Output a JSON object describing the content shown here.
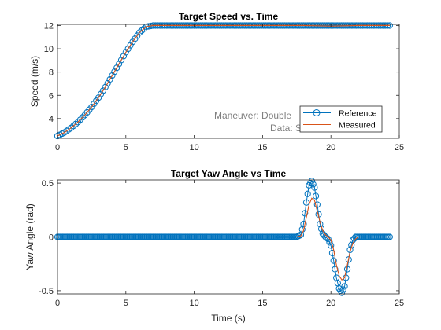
{
  "colors": {
    "reference": "#0072BD",
    "measured": "#D95319",
    "axis": "#262626",
    "annotation": "#7f7f7f"
  },
  "chart_data": [
    {
      "type": "line",
      "title": "Target Speed vs. Time",
      "xlabel": "",
      "ylabel": "Speed (m/s)",
      "xlim": [
        0,
        25
      ],
      "ylim": [
        2.3,
        12.1
      ],
      "xticks": [
        "0",
        "5",
        "10",
        "15",
        "20",
        "25"
      ],
      "yticks": [
        "4",
        "6",
        "8",
        "10",
        "12"
      ],
      "grid": false,
      "legend_location": "bottom-right",
      "annotations": [
        "Maneuver: Double",
        "Data: S"
      ],
      "series": [
        {
          "name": "Reference",
          "style": "circle-markers-line",
          "x": [
            0,
            0.5,
            1,
            1.5,
            2,
            2.5,
            3,
            3.5,
            4,
            4.5,
            5,
            5.5,
            6,
            6.5,
            7,
            7.5,
            8,
            10,
            12,
            14,
            16,
            18,
            20,
            22,
            24.3
          ],
          "y": [
            2.5,
            2.8,
            3.2,
            3.7,
            4.3,
            5.0,
            5.8,
            6.7,
            7.7,
            8.7,
            9.7,
            10.6,
            11.4,
            11.9,
            12.0,
            12.0,
            12.0,
            12.0,
            12.0,
            12.0,
            12.0,
            12.0,
            12.0,
            12.0,
            12.0
          ]
        },
        {
          "name": "Measured",
          "style": "line",
          "x": [
            0,
            0.5,
            1,
            1.5,
            2,
            2.5,
            3,
            3.5,
            4,
            4.5,
            5,
            5.5,
            6,
            6.5,
            7,
            7.5,
            8,
            10,
            12,
            14,
            16,
            18,
            20,
            22,
            24.3
          ],
          "y": [
            2.5,
            2.8,
            3.2,
            3.7,
            4.3,
            5.0,
            5.8,
            6.7,
            7.7,
            8.7,
            9.7,
            10.6,
            11.4,
            11.9,
            12.0,
            12.0,
            12.0,
            12.0,
            12.0,
            12.0,
            12.0,
            12.0,
            11.95,
            12.0,
            12.0
          ]
        }
      ]
    },
    {
      "type": "line",
      "title": "Target Yaw Angle vs Time",
      "xlabel": "Time (s)",
      "ylabel": "Yaw Angle (rad)",
      "xlim": [
        0,
        25
      ],
      "ylim": [
        -0.53,
        0.53
      ],
      "xticks": [
        "0",
        "5",
        "10",
        "15",
        "20",
        "25"
      ],
      "yticks": [
        "-0.5",
        "0",
        "0.5"
      ],
      "grid": false,
      "series": [
        {
          "name": "Reference",
          "style": "circle-markers-line",
          "x": [
            0,
            2,
            4,
            6,
            8,
            10,
            12,
            14,
            16,
            17.5,
            17.8,
            18.0,
            18.2,
            18.4,
            18.6,
            18.8,
            19.0,
            19.2,
            19.4,
            19.6,
            19.8,
            20.0,
            20.2,
            20.4,
            20.6,
            20.8,
            21.0,
            21.2,
            21.4,
            21.6,
            21.8,
            22.0,
            23,
            24.3
          ],
          "y": [
            0,
            0,
            0,
            0,
            0,
            0,
            0,
            0,
            0,
            0,
            0.02,
            0.12,
            0.32,
            0.48,
            0.52,
            0.46,
            0.3,
            0.12,
            0.03,
            0,
            -0.02,
            -0.08,
            -0.22,
            -0.38,
            -0.48,
            -0.52,
            -0.46,
            -0.3,
            -0.12,
            -0.03,
            0,
            0,
            0,
            0
          ]
        },
        {
          "name": "Measured",
          "style": "line",
          "x": [
            0,
            2,
            4,
            6,
            8,
            10,
            12,
            14,
            16,
            17.5,
            17.8,
            18.0,
            18.2,
            18.4,
            18.6,
            18.8,
            19.0,
            19.2,
            19.4,
            19.6,
            19.8,
            20.0,
            20.2,
            20.4,
            20.6,
            20.8,
            21.0,
            21.2,
            21.4,
            21.6,
            21.8,
            22.0,
            23,
            24.3
          ],
          "y": [
            0,
            0,
            0,
            0,
            0,
            0,
            0,
            0,
            0,
            0,
            0.01,
            0.06,
            0.18,
            0.3,
            0.36,
            0.34,
            0.24,
            0.14,
            0.06,
            0.02,
            0,
            -0.03,
            -0.12,
            -0.26,
            -0.36,
            -0.4,
            -0.38,
            -0.26,
            -0.14,
            -0.06,
            -0.02,
            0,
            0,
            0
          ]
        }
      ]
    }
  ]
}
